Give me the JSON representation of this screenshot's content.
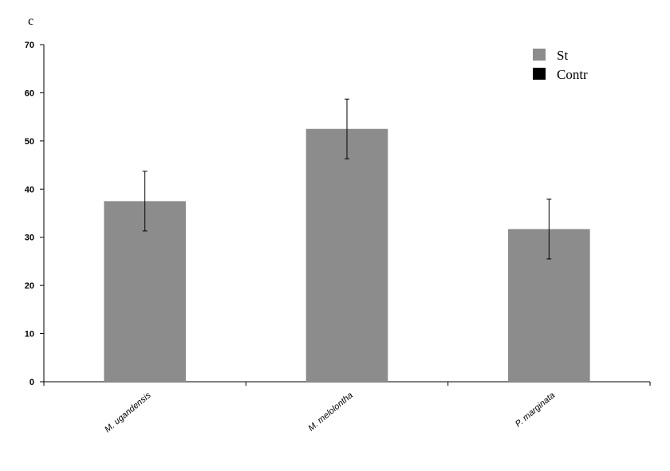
{
  "panel_label": "c",
  "chart_data": {
    "type": "bar",
    "categories": [
      "M. ugandensis",
      "M. melolontha",
      "P. marginata"
    ],
    "series": [
      {
        "name": "St",
        "values": [
          37.5,
          52.5,
          31.7
        ],
        "error": [
          6.2,
          6.2,
          6.2
        ],
        "color": "#8c8c8c"
      },
      {
        "name": "Contr",
        "values": [
          0,
          0,
          0
        ],
        "color": "#000000"
      }
    ],
    "ylim": [
      0,
      70
    ],
    "yticks": [
      "0",
      "10",
      "20",
      "30",
      "40",
      "50",
      "60",
      "70"
    ],
    "xlabel": "",
    "ylabel": "",
    "legend": "top-right",
    "grid": false
  }
}
